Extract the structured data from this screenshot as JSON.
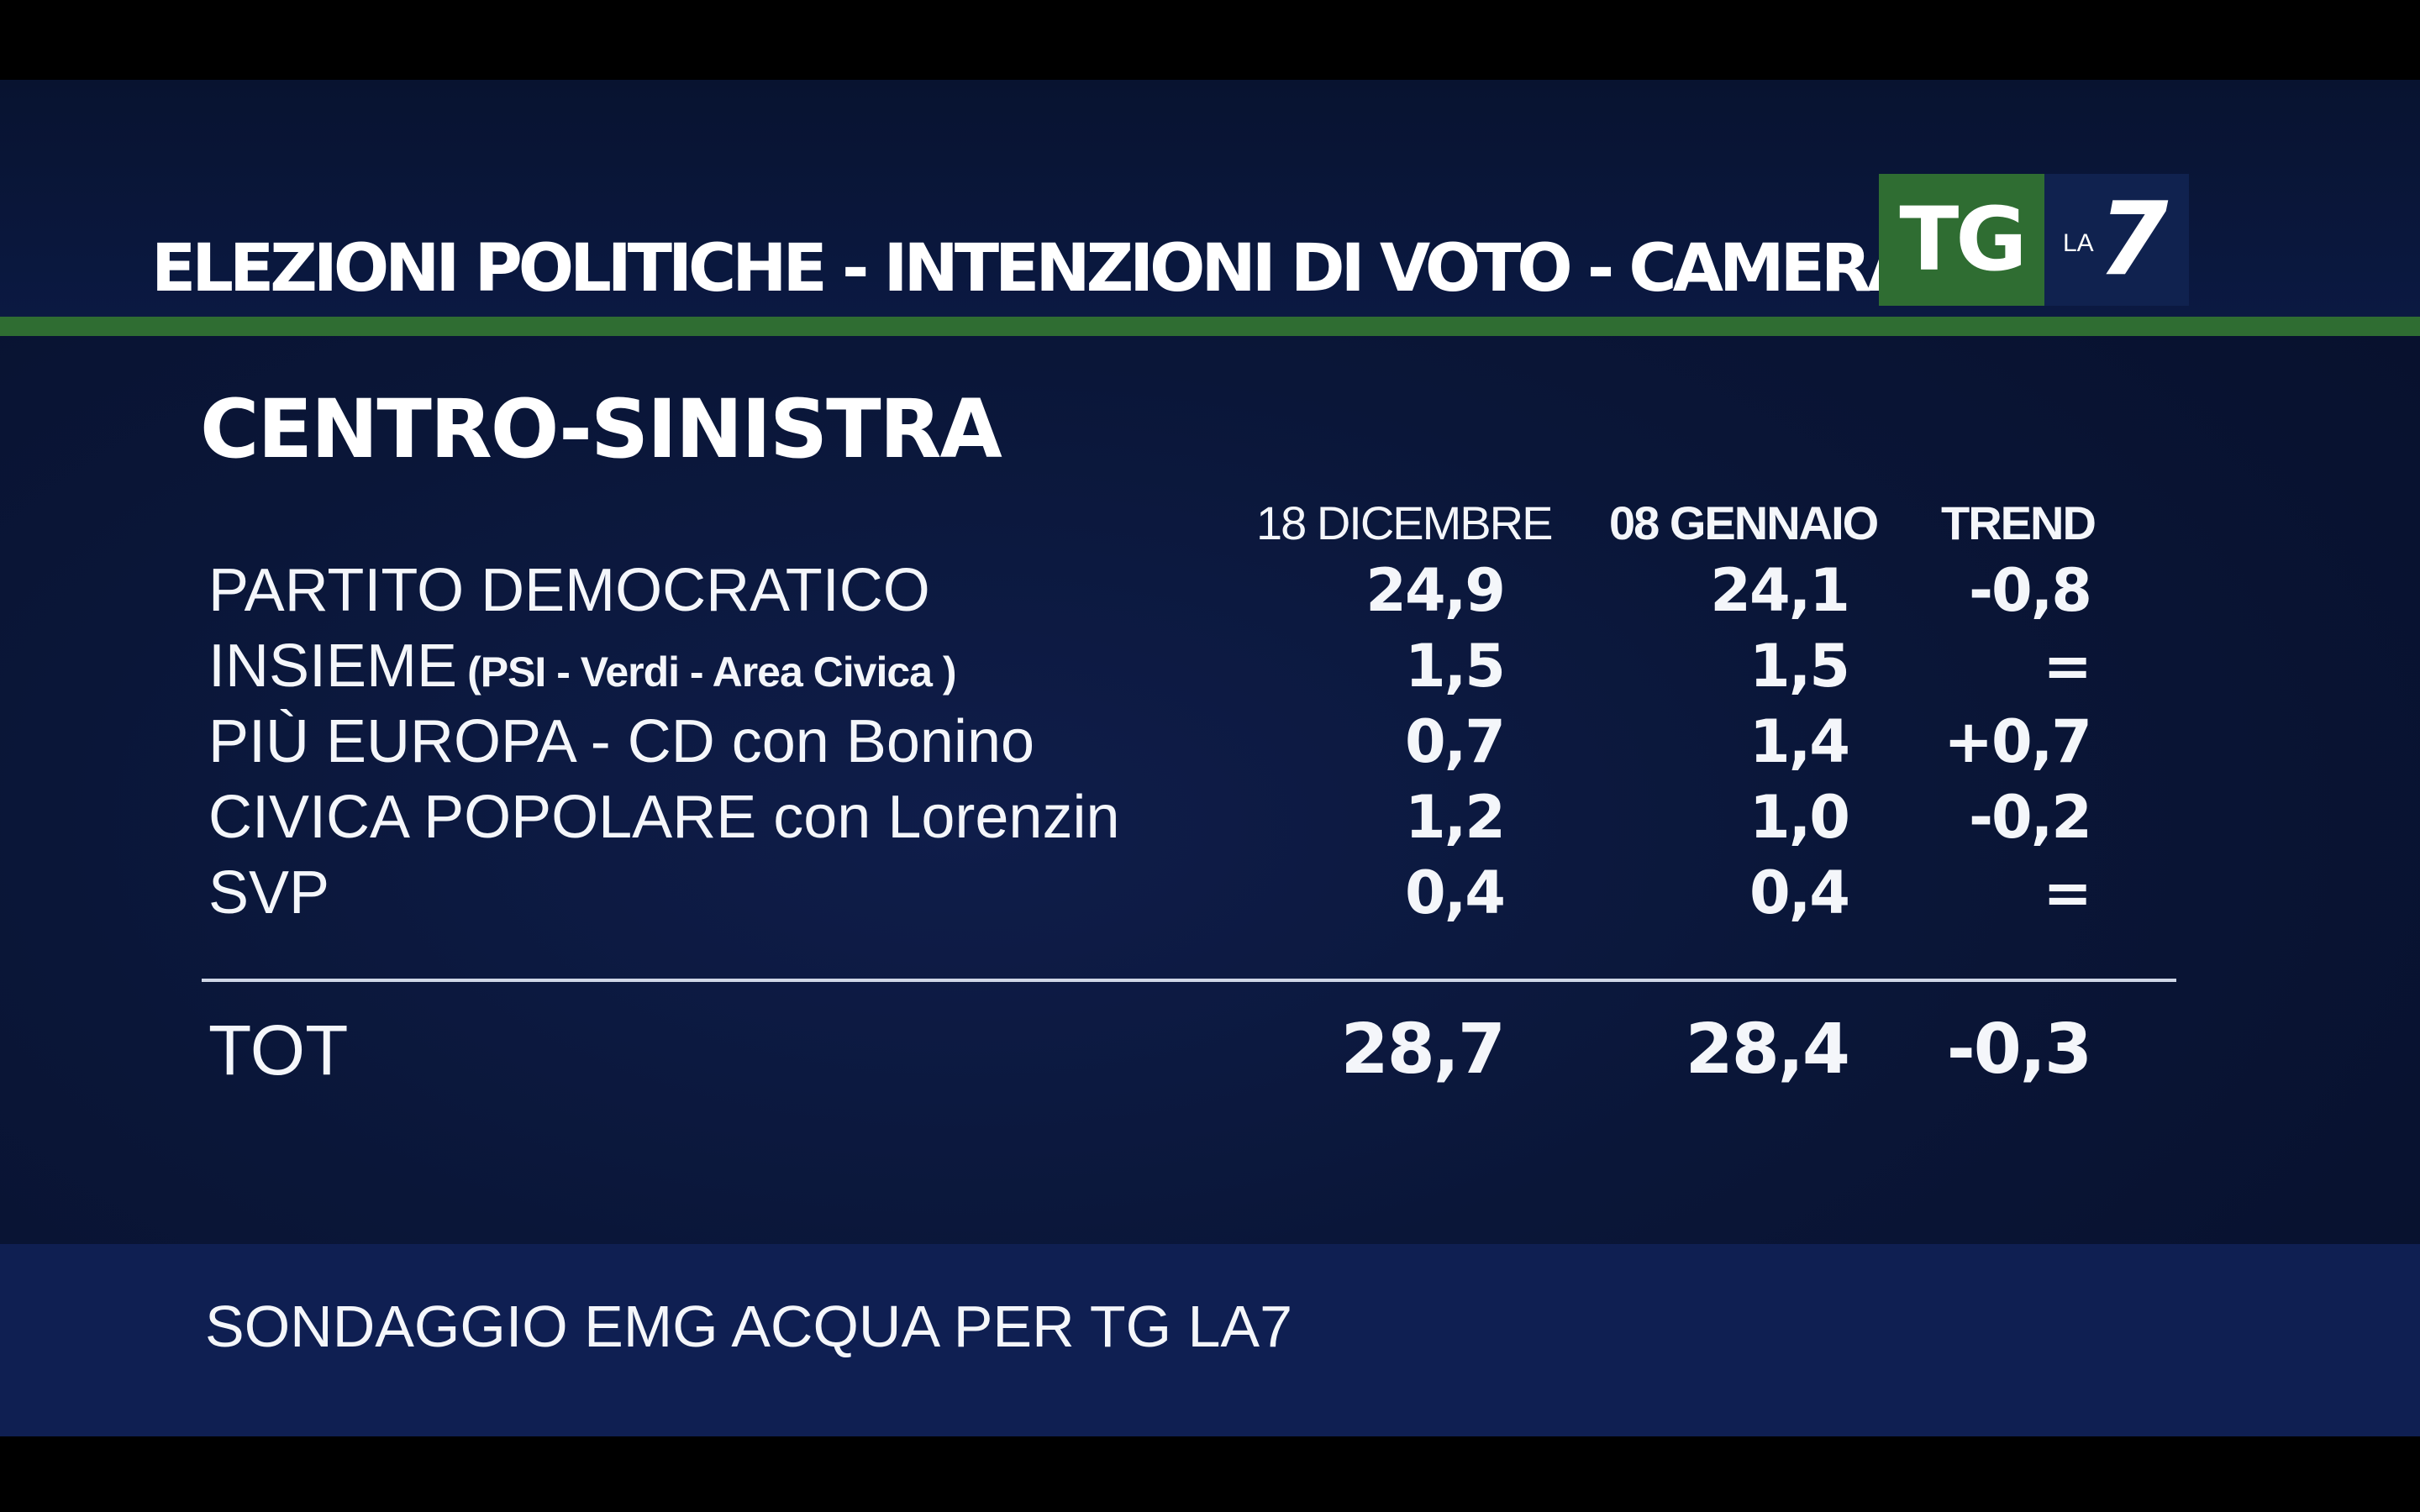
{
  "header": {
    "title": "ELEZIONI POLITICHE - INTENZIONI DI VOTO - CAMERA",
    "logo_tg": "TG",
    "logo_la": "LA",
    "logo_7": "7"
  },
  "section": {
    "title": "CENTRO-SINISTRA"
  },
  "columns": [
    "18 DICEMBRE",
    "08 GENNAIO",
    "TREND"
  ],
  "rows": [
    {
      "party": "PARTITO DEMOCRATICO",
      "sub": "",
      "dec": "24,9",
      "gen": "24,1",
      "trend": "-0,8"
    },
    {
      "party": "INSIEME",
      "sub": "(PSI - Verdi - Area Civica )",
      "dec": "1,5",
      "gen": "1,5",
      "trend": "="
    },
    {
      "party": "PIÙ EUROPA - CD con Bonino",
      "sub": "",
      "dec": "0,7",
      "gen": "1,4",
      "trend": "+0,7"
    },
    {
      "party": "CIVICA POPOLARE con Lorenzin",
      "sub": "",
      "dec": "1,2",
      "gen": "1,0",
      "trend": "-0,2"
    },
    {
      "party": "SVP",
      "sub": "",
      "dec": "0,4",
      "gen": "0,4",
      "trend": "="
    }
  ],
  "total": {
    "label": "TOT",
    "dec": "28,7",
    "gen": "28,4",
    "trend": "-0,3"
  },
  "footer": {
    "source": "SONDAGGIO EMG ACQUA PER TG LA7"
  },
  "colors": {
    "background": "#0a1638",
    "accent_green": "#2f6d32",
    "footer_band": "#0f1f52",
    "text": "#f4f6fa"
  }
}
